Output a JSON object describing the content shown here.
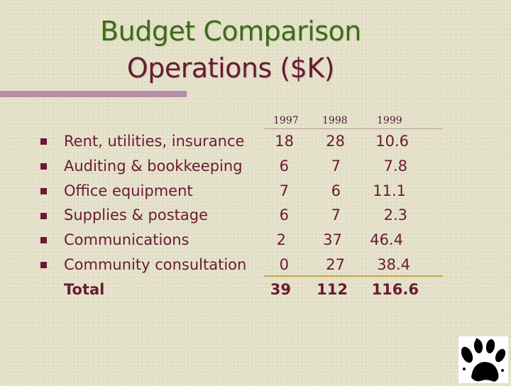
{
  "slide": {
    "title_line1": "Budget Comparison",
    "title_line2": "Operations ($K)"
  },
  "table": {
    "years": [
      "1997",
      "1998",
      "1999"
    ],
    "rows": [
      {
        "label": "Rent, utilities, insurance",
        "v1997": "18",
        "v1998": "28",
        "v1999": "10.6"
      },
      {
        "label": "Auditing & bookkeeping",
        "v1997": "6",
        "v1998": "7",
        "v1999": "7.8"
      },
      {
        "label": "Office equipment",
        "v1997": "7",
        "v1998": "6",
        "v1999": "11.1"
      },
      {
        "label": "Supplies & postage",
        "v1997": "6",
        "v1998": "7",
        "v1999": "2.3"
      },
      {
        "label": "Communications",
        "v1997": "2",
        "v1998": "37",
        "v1999": "46.4"
      },
      {
        "label": "Community consultation",
        "v1997": "0",
        "v1998": "27",
        "v1999": "38.4"
      }
    ],
    "total": {
      "label": "Total",
      "v1997": "39",
      "v1998": "112",
      "v1999": "116.6"
    }
  },
  "colors": {
    "background": "#e4e0c8",
    "title_line1": "#3a6e14",
    "title_line2": "#6a1a32",
    "text": "#6a1a32",
    "accent_rule": "#b58eaa",
    "total_rule": "#c8a23a"
  },
  "icons": [
    "bullet-square-icon",
    "paw-logo-icon"
  ]
}
